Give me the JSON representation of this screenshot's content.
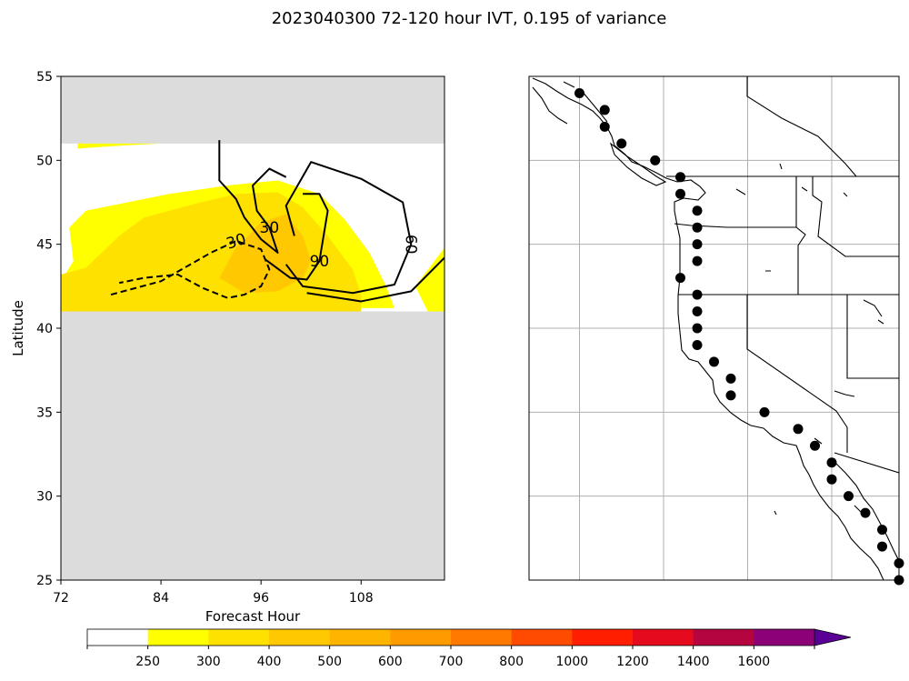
{
  "title": "2023040300 72-120 hour IVT, 0.195 of variance",
  "chart_data": [
    {
      "type": "heatmap",
      "panel": "left",
      "xlabel": "Forecast Hour",
      "ylabel": "Latitude",
      "xlim": [
        72,
        118
      ],
      "ylim": [
        25,
        55
      ],
      "x_ticks": [
        72,
        84,
        96,
        108
      ],
      "x_tick_labels": [
        "72",
        "84",
        "96",
        "108"
      ],
      "y_ticks": [
        25,
        30,
        35,
        40,
        45,
        50,
        55
      ],
      "y_tick_labels": [
        "25",
        "30",
        "35",
        "40",
        "45",
        "50",
        "55"
      ],
      "valid_latitude_range": [
        41,
        51
      ],
      "missing_color": "#dcdcdc",
      "fill_regions": [
        {
          "level": 250,
          "color": "#ffff00",
          "points": [
            [
              72,
              42.8
            ],
            [
              73.5,
              44
            ],
            [
              73,
              46
            ],
            [
              75,
              47
            ],
            [
              80,
              47.5
            ],
            [
              85,
              48
            ],
            [
              92,
              48.5
            ],
            [
              98,
              48.8
            ],
            [
              103,
              48
            ],
            [
              106,
              46.5
            ],
            [
              109,
              44.5
            ],
            [
              111,
              42.5
            ],
            [
              112,
              41.2
            ],
            [
              72,
              41.2
            ]
          ]
        },
        {
          "level": 250,
          "color": "#ffff00",
          "points": [
            [
              74,
              50.7
            ],
            [
              80,
              50.9
            ],
            [
              84,
              51
            ],
            [
              74,
              51
            ]
          ]
        },
        {
          "level": 250,
          "color": "#ffff00",
          "points": [
            [
              114.5,
              42.5
            ],
            [
              118,
              44.8
            ],
            [
              118,
              41
            ],
            [
              116,
              41
            ]
          ]
        },
        {
          "level": 300,
          "color": "#ffe100",
          "points": [
            [
              72,
              43.2
            ],
            [
              75,
              43.6
            ],
            [
              79,
              45.5
            ],
            [
              82,
              46.6
            ],
            [
              88,
              47.4
            ],
            [
              93,
              48
            ],
            [
              98,
              48.1
            ],
            [
              101,
              47.2
            ],
            [
              104,
              45.5
            ],
            [
              107,
              43.5
            ],
            [
              108,
              42
            ],
            [
              108,
              41
            ],
            [
              72,
              41
            ]
          ]
        },
        {
          "level": 400,
          "color": "#ffc800",
          "points": [
            [
              91,
              43
            ],
            [
              93,
              44.8
            ],
            [
              96,
              46.3
            ],
            [
              99,
              46.8
            ],
            [
              101,
              45.5
            ],
            [
              102,
              44
            ],
            [
              101,
              43
            ],
            [
              98,
              42.2
            ],
            [
              94,
              42.1
            ]
          ]
        }
      ],
      "contours": [
        {
          "label": "30",
          "style": "dashed",
          "points": [
            [
              78,
              42
            ],
            [
              84,
              42.8
            ],
            [
              90,
              44.5
            ],
            [
              93,
              45.2
            ],
            [
              96,
              44.7
            ],
            [
              97,
              43.5
            ],
            [
              96,
              42.5
            ],
            [
              94,
              42
            ],
            [
              92,
              41.8
            ],
            [
              89,
              42.4
            ],
            [
              86,
              43.2
            ],
            [
              82,
              43
            ],
            [
              79,
              42.7
            ]
          ]
        },
        {
          "label": "30",
          "style": "solid",
          "points": [
            [
              91,
              51.2
            ],
            [
              91,
              48.8
            ],
            [
              93,
              47.7
            ],
            [
              94,
              46.6
            ],
            [
              96,
              45.3
            ],
            [
              98,
              44.5
            ],
            [
              97,
              46
            ],
            [
              95.5,
              47
            ],
            [
              95,
              48.5
            ],
            [
              97,
              49.5
            ],
            [
              99,
              49
            ]
          ]
        },
        {
          "label": "90",
          "style": "solid",
          "points": [
            [
              96.5,
              44.1
            ],
            [
              99.5,
              43
            ],
            [
              101.5,
              42.9
            ],
            [
              103,
              44
            ],
            [
              104,
              47
            ],
            [
              103,
              48
            ],
            [
              101,
              48
            ]
          ]
        },
        {
          "label": "60",
          "style": "solid",
          "points": [
            [
              99,
              43.8
            ],
            [
              101,
              42.5
            ],
            [
              107,
              42.1
            ],
            [
              112,
              42.6
            ],
            [
              114,
              45
            ],
            [
              113,
              47.5
            ],
            [
              108,
              48.9
            ],
            [
              102,
              49.9
            ],
            [
              99,
              47.3
            ],
            [
              100,
              45.5
            ]
          ]
        },
        {
          "label": "",
          "style": "solid",
          "points": [
            [
              101.5,
              42.1
            ],
            [
              108,
              41.6
            ],
            [
              114,
              42.2
            ],
            [
              118,
              44.2
            ]
          ]
        }
      ]
    },
    {
      "type": "scatter",
      "panel": "right",
      "description_free": true,
      "xlim": [
        -135,
        -113
      ],
      "ylim": [
        25,
        55
      ],
      "x": [
        -132,
        -130.5,
        -130.5,
        -129.5,
        -127.5,
        -126,
        -126,
        -125,
        -125,
        -125,
        -125,
        -126,
        -125,
        -125,
        -125,
        -125,
        -124,
        -123,
        -123,
        -121,
        -119,
        -118,
        -117,
        -117,
        -116,
        -115,
        -114,
        -114,
        -113,
        -113
      ],
      "y": [
        54,
        53,
        52,
        51,
        50,
        49,
        48,
        47,
        46,
        45,
        44,
        43,
        42,
        41,
        40,
        39,
        38,
        37,
        36,
        35,
        34,
        33,
        32,
        31,
        30,
        29,
        28,
        27,
        26,
        25
      ],
      "gridlines_x": [
        -132,
        -127,
        -122,
        -117
      ],
      "gridlines_y": [
        30,
        35,
        40,
        45,
        50
      ],
      "marker_color": "#000000"
    }
  ],
  "colorbar": {
    "tick_labels": [
      "250",
      "300",
      "400",
      "500",
      "600",
      "700",
      "800",
      "1000",
      "1200",
      "1400",
      "1600"
    ],
    "colors": [
      "#ffffff",
      "#ffff00",
      "#ffe100",
      "#ffc800",
      "#ffb400",
      "#ff9b00",
      "#ff7800",
      "#ff4b00",
      "#ff1e00",
      "#e60a1e",
      "#b40541",
      "#8c0078",
      "#5a0096"
    ]
  }
}
